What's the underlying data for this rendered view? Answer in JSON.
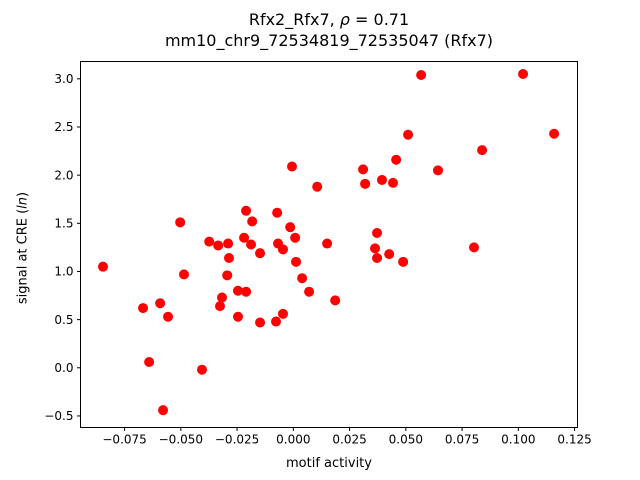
{
  "chart_data": {
    "type": "scatter",
    "title": "Rfx2_Rfx7, ρ = 0.71",
    "subtitle": "mm10_chr9_72534819_72535047 (Rfx7)",
    "title_parts": {
      "prefix": "Rfx2_Rfx7, ",
      "italic": "ρ",
      "suffix": " = 0.71"
    },
    "xlabel": "motif activity",
    "ylabel": "signal at CRE (ln)",
    "ylabel_parts": {
      "prefix": "signal at CRE (",
      "italic": "ln",
      "suffix": ")"
    },
    "marker_color": "#ff0000",
    "axis_color": "#000000",
    "background_color": "#ffffff",
    "grid": false,
    "legend_position": "none",
    "xlim": [
      -0.0946,
      0.1263
    ],
    "ylim": [
      -0.62,
      3.18
    ],
    "xticks": [
      -0.075,
      -0.05,
      -0.025,
      0,
      0.025,
      0.05,
      0.075,
      0.1,
      0.125
    ],
    "yticks": [
      -0.5,
      0,
      0.5,
      1,
      1.5,
      2,
      2.5,
      3
    ],
    "x_tick_decimals": 3,
    "y_tick_decimals": 1,
    "points": [
      [
        -0.0006,
        2.09
      ],
      [
        0.0106,
        1.88
      ],
      [
        -0.0503,
        1.51
      ],
      [
        -0.021,
        1.63
      ],
      [
        -0.0183,
        1.52
      ],
      [
        -0.0072,
        1.61
      ],
      [
        -0.0014,
        1.46
      ],
      [
        -0.0374,
        1.31
      ],
      [
        -0.0334,
        1.27
      ],
      [
        -0.029,
        1.29
      ],
      [
        -0.0219,
        1.35
      ],
      [
        -0.0188,
        1.28
      ],
      [
        -0.0068,
        1.29
      ],
      [
        -0.0046,
        1.23
      ],
      [
        -0.0148,
        1.19
      ],
      [
        0.0008,
        1.35
      ],
      [
        0.0012,
        1.1
      ],
      [
        0.0039,
        0.93
      ],
      [
        0.015,
        1.29
      ],
      [
        0.007,
        0.79
      ],
      [
        0.0568,
        3.04
      ],
      [
        0.1021,
        3.05
      ],
      [
        0.051,
        2.42
      ],
      [
        0.1159,
        2.43
      ],
      [
        0.0839,
        2.26
      ],
      [
        0.0457,
        2.16
      ],
      [
        0.031,
        2.06
      ],
      [
        0.0643,
        2.05
      ],
      [
        0.0319,
        1.91
      ],
      [
        0.0394,
        1.95
      ],
      [
        0.0443,
        1.92
      ],
      [
        0.0372,
        1.4
      ],
      [
        0.0363,
        1.24
      ],
      [
        0.0803,
        1.25
      ],
      [
        -0.0846,
        1.05
      ],
      [
        -0.0486,
        0.97
      ],
      [
        -0.0668,
        0.62
      ],
      [
        -0.0592,
        0.67
      ],
      [
        -0.0557,
        0.53
      ],
      [
        -0.0641,
        0.06
      ],
      [
        -0.0406,
        -0.02
      ],
      [
        -0.0579,
        -0.44
      ],
      [
        -0.0286,
        1.14
      ],
      [
        -0.0294,
        0.96
      ],
      [
        -0.0317,
        0.73
      ],
      [
        -0.0326,
        0.64
      ],
      [
        -0.0246,
        0.53
      ],
      [
        -0.0246,
        0.8
      ],
      [
        -0.021,
        0.79
      ],
      [
        -0.0148,
        0.47
      ],
      [
        -0.0077,
        0.48
      ],
      [
        -0.0046,
        0.56
      ],
      [
        0.0372,
        1.14
      ],
      [
        0.0426,
        1.18
      ],
      [
        0.0488,
        1.1
      ],
      [
        0.0186,
        0.7
      ]
    ]
  }
}
